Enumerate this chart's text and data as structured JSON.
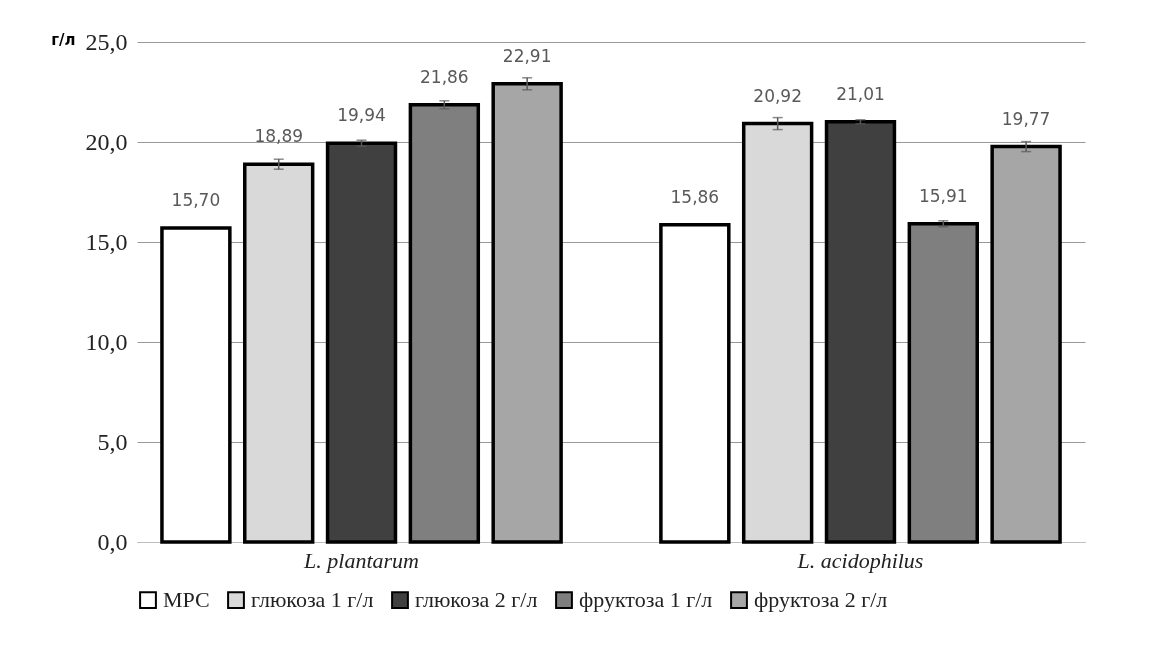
{
  "chart_data": {
    "type": "bar",
    "ylabel": "г/л",
    "categories": [
      "L. plantarum",
      "L. acidophilus"
    ],
    "series": [
      {
        "name": "МРС",
        "color": "#ffffff",
        "values": [
          15.7,
          15.86
        ],
        "errors": [
          null,
          null
        ],
        "value_labels": [
          "15,70",
          "15,86"
        ]
      },
      {
        "name": "глюкоза 1 г/л",
        "color": "#d9d9d9",
        "values": [
          18.89,
          20.92
        ],
        "errors": [
          0.25,
          0.3
        ],
        "value_labels": [
          "18,89",
          "20,92"
        ]
      },
      {
        "name": "глюкоза 2 г/л",
        "color": "#404040",
        "values": [
          19.94,
          21.01
        ],
        "errors": [
          0.15,
          0.1
        ],
        "value_labels": [
          "19,94",
          "21,01"
        ]
      },
      {
        "name": "фруктоза 1 г/л",
        "color": "#7f7f7f",
        "values": [
          21.86,
          15.91
        ],
        "errors": [
          0.2,
          0.15
        ],
        "value_labels": [
          "21,86",
          "15,91"
        ]
      },
      {
        "name": "фруктоза 2 г/л",
        "color": "#a6a6a6",
        "values": [
          22.91,
          19.77
        ],
        "errors": [
          0.3,
          0.25
        ],
        "value_labels": [
          "22,91",
          "19,77"
        ]
      }
    ],
    "ylim": [
      0,
      25
    ],
    "yticks": [
      {
        "value": 0,
        "label": "0,0"
      },
      {
        "value": 5,
        "label": "5,0"
      },
      {
        "value": 10,
        "label": "10,0"
      },
      {
        "value": 15,
        "label": "15,0"
      },
      {
        "value": 20,
        "label": "20,0"
      },
      {
        "value": 25,
        "label": "25,0"
      }
    ],
    "grid": "y",
    "legend": "bottom"
  }
}
